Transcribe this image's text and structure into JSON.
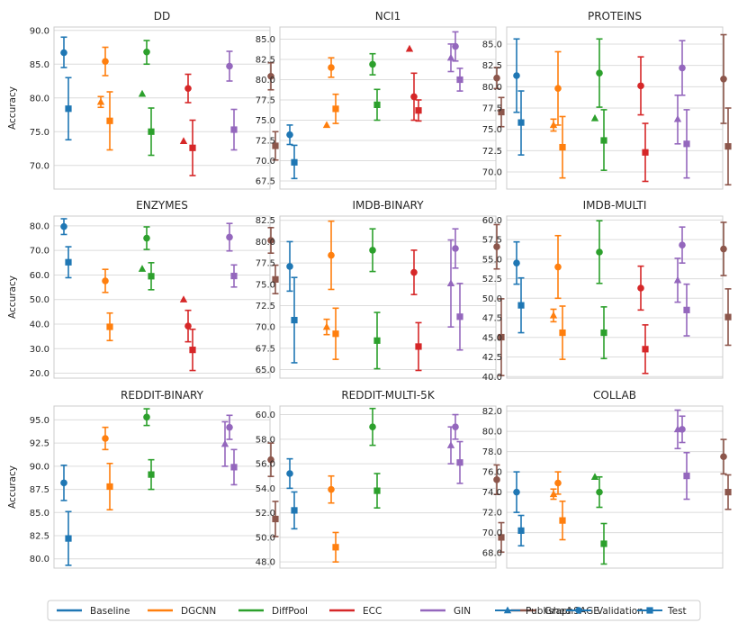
{
  "colors": {
    "Baseline": "#1f77b4",
    "DGCNN": "#ff7f0e",
    "DiffPool": "#2ca02c",
    "ECC": "#d62728",
    "GIN": "#9467bd",
    "GraphSAGE": "#8c564b"
  },
  "legend": {
    "models": [
      "Baseline",
      "DGCNN",
      "DiffPool",
      "ECC",
      "GIN",
      "GraphSAGE"
    ],
    "markers": [
      {
        "label": "Published",
        "shape": "triangle"
      },
      {
        "label": "Validation",
        "shape": "circle"
      },
      {
        "label": "Test",
        "shape": "square"
      }
    ]
  },
  "chart_data": [
    {
      "type": "scatter",
      "title": "DD",
      "ylabel": "Accuracy",
      "ylim": [
        66.5,
        90.5
      ],
      "yticks": [
        70.0,
        75.0,
        80.0,
        85.0,
        90.0
      ],
      "tick_format": "1",
      "models": [
        {
          "name": "Baseline",
          "published": null,
          "validation": [
            86.7,
            84.5,
            89.0
          ],
          "test": [
            78.4,
            73.8,
            83.0
          ]
        },
        {
          "name": "DGCNN",
          "published": [
            79.4,
            78.6,
            80.2
          ],
          "validation": [
            85.4,
            83.3,
            87.5
          ],
          "test": [
            76.6,
            72.3,
            80.9
          ]
        },
        {
          "name": "DiffPool",
          "published": [
            80.6,
            null,
            null
          ],
          "validation": [
            86.8,
            85.0,
            88.5
          ],
          "test": [
            75.0,
            71.5,
            78.5
          ]
        },
        {
          "name": "ECC",
          "published": [
            73.6,
            null,
            null
          ],
          "validation": [
            81.4,
            79.3,
            83.5
          ],
          "test": [
            72.6,
            68.5,
            76.7
          ]
        },
        {
          "name": "GIN",
          "published": null,
          "validation": [
            84.7,
            82.5,
            86.9
          ],
          "test": [
            75.3,
            72.3,
            78.3
          ]
        },
        {
          "name": "GraphSAGE",
          "published": null,
          "validation": [
            83.2,
            81.2,
            85.2
          ],
          "test": [
            72.9,
            70.8,
            75.0
          ]
        }
      ]
    },
    {
      "type": "scatter",
      "title": "NCI1",
      "ylabel": "",
      "ylim": [
        66.5,
        86.5
      ],
      "yticks": [
        67.5,
        70.0,
        72.5,
        75.0,
        77.5,
        80.0,
        82.5,
        85.0
      ],
      "tick_format": "1",
      "models": [
        {
          "name": "Baseline",
          "published": null,
          "validation": [
            73.2,
            72.0,
            74.4
          ],
          "test": [
            69.8,
            67.8,
            71.9
          ]
        },
        {
          "name": "DGCNN",
          "published": [
            74.4,
            null,
            null
          ],
          "validation": [
            81.5,
            80.3,
            82.7
          ],
          "test": [
            76.4,
            74.6,
            78.2
          ]
        },
        {
          "name": "DiffPool",
          "published": null,
          "validation": [
            81.9,
            80.6,
            83.2
          ],
          "test": [
            76.9,
            75.0,
            78.8
          ]
        },
        {
          "name": "ECC",
          "published": [
            83.8,
            null,
            null
          ],
          "validation": [
            77.9,
            75.0,
            80.8
          ],
          "test": [
            76.2,
            74.9,
            77.5
          ]
        },
        {
          "name": "GIN",
          "published": [
            82.7,
            81.0,
            84.4
          ],
          "validation": [
            84.1,
            82.3,
            85.9
          ],
          "test": [
            80.0,
            78.6,
            81.4
          ]
        },
        {
          "name": "GraphSAGE",
          "published": null,
          "validation": [
            80.2,
            78.9,
            81.5
          ],
          "test": [
            76.0,
            74.2,
            77.8
          ]
        }
      ]
    },
    {
      "type": "scatter",
      "title": "PROTEINS",
      "ylabel": "",
      "ylim": [
        68.0,
        87.0
      ],
      "yticks": [
        70.0,
        72.5,
        75.0,
        77.5,
        80.0,
        82.5,
        85.0
      ],
      "tick_format": "1",
      "models": [
        {
          "name": "Baseline",
          "published": null,
          "validation": [
            81.3,
            77.0,
            85.6
          ],
          "test": [
            75.8,
            72.0,
            79.5
          ]
        },
        {
          "name": "DGCNN",
          "published": [
            75.5,
            74.8,
            76.2
          ],
          "validation": [
            79.8,
            75.5,
            84.1
          ],
          "test": [
            72.9,
            69.3,
            76.5
          ]
        },
        {
          "name": "DiffPool",
          "published": [
            76.3,
            null,
            null
          ],
          "validation": [
            81.6,
            77.6,
            85.6
          ],
          "test": [
            73.7,
            70.2,
            77.3
          ]
        },
        {
          "name": "ECC",
          "published": null,
          "validation": [
            80.1,
            76.7,
            83.5
          ],
          "test": [
            72.3,
            68.9,
            75.7
          ]
        },
        {
          "name": "GIN",
          "published": [
            76.2,
            73.3,
            79.0
          ],
          "validation": [
            82.2,
            79.0,
            85.4
          ],
          "test": [
            73.3,
            69.3,
            77.3
          ]
        },
        {
          "name": "GraphSAGE",
          "published": null,
          "validation": [
            80.9,
            75.7,
            86.1
          ],
          "test": [
            73.0,
            68.5,
            77.5
          ]
        }
      ]
    },
    {
      "type": "scatter",
      "title": "ENZYMES",
      "ylabel": "Accuracy",
      "ylim": [
        18.0,
        84.0
      ],
      "yticks": [
        20.0,
        30.0,
        40.0,
        50.0,
        60.0,
        70.0,
        80.0
      ],
      "tick_format": "1",
      "models": [
        {
          "name": "Baseline",
          "published": null,
          "validation": [
            79.7,
            76.5,
            82.9
          ],
          "test": [
            65.2,
            58.9,
            71.5
          ]
        },
        {
          "name": "DGCNN",
          "published": null,
          "validation": [
            57.6,
            52.9,
            62.3
          ],
          "test": [
            38.9,
            33.3,
            44.5
          ]
        },
        {
          "name": "DiffPool",
          "published": [
            62.5,
            null,
            null
          ],
          "validation": [
            75.0,
            70.4,
            79.6
          ],
          "test": [
            59.5,
            54.0,
            65.0
          ]
        },
        {
          "name": "ECC",
          "published": [
            50.0,
            null,
            null
          ],
          "validation": [
            39.2,
            32.8,
            45.6
          ],
          "test": [
            29.5,
            21.1,
            37.9
          ]
        },
        {
          "name": "GIN",
          "published": null,
          "validation": [
            75.4,
            69.8,
            81.0
          ],
          "test": [
            59.6,
            55.1,
            64.1
          ]
        },
        {
          "name": "GraphSAGE",
          "published": null,
          "validation": [
            74.1,
            68.9,
            79.3
          ],
          "test": [
            58.2,
            52.4,
            64.0
          ]
        }
      ]
    },
    {
      "type": "scatter",
      "title": "IMDB-BINARY",
      "ylabel": "",
      "ylim": [
        64.0,
        83.0
      ],
      "yticks": [
        65.0,
        67.5,
        70.0,
        72.5,
        75.0,
        77.5,
        80.0,
        82.5
      ],
      "tick_format": "1",
      "models": [
        {
          "name": "Baseline",
          "published": null,
          "validation": [
            77.1,
            74.2,
            80.0
          ],
          "test": [
            70.8,
            65.8,
            75.8
          ]
        },
        {
          "name": "DGCNN",
          "published": [
            70.0,
            69.1,
            70.9
          ],
          "validation": [
            78.4,
            74.4,
            82.4
          ],
          "test": [
            69.2,
            66.2,
            72.2
          ]
        },
        {
          "name": "DiffPool",
          "published": null,
          "validation": [
            79.0,
            76.5,
            81.5
          ],
          "test": [
            68.4,
            65.1,
            71.7
          ]
        },
        {
          "name": "ECC",
          "published": null,
          "validation": [
            76.4,
            73.8,
            79.0
          ],
          "test": [
            67.7,
            64.9,
            70.5
          ]
        },
        {
          "name": "GIN",
          "published": [
            75.1,
            70.0,
            80.2
          ],
          "validation": [
            79.2,
            76.9,
            81.5
          ],
          "test": [
            71.2,
            67.3,
            75.1
          ]
        },
        {
          "name": "GraphSAGE",
          "published": null,
          "validation": [
            79.4,
            76.8,
            82.0
          ],
          "test": [
            68.8,
            64.3,
            73.3
          ]
        }
      ]
    },
    {
      "type": "scatter",
      "title": "IMDB-MULTI",
      "ylabel": "",
      "ylim": [
        39.8,
        60.5
      ],
      "yticks": [
        40.0,
        42.5,
        45.0,
        47.5,
        50.0,
        52.5,
        55.0,
        57.5,
        60.0
      ],
      "tick_format": "1",
      "models": [
        {
          "name": "Baseline",
          "published": null,
          "validation": [
            54.5,
            51.8,
            57.2
          ],
          "test": [
            49.1,
            45.6,
            52.6
          ]
        },
        {
          "name": "DGCNN",
          "published": [
            47.8,
            47.0,
            48.6
          ],
          "validation": [
            54.0,
            50.0,
            58.0
          ],
          "test": [
            45.6,
            42.2,
            49.0
          ]
        },
        {
          "name": "DiffPool",
          "published": null,
          "validation": [
            55.9,
            51.9,
            59.9
          ],
          "test": [
            45.6,
            42.3,
            48.9
          ]
        },
        {
          "name": "ECC",
          "published": null,
          "validation": [
            51.3,
            48.5,
            54.1
          ],
          "test": [
            43.5,
            40.4,
            46.6
          ]
        },
        {
          "name": "GIN",
          "published": [
            52.3,
            49.5,
            55.1
          ],
          "validation": [
            56.8,
            54.5,
            59.1
          ],
          "test": [
            48.5,
            45.2,
            51.8
          ]
        },
        {
          "name": "GraphSAGE",
          "published": null,
          "validation": [
            56.3,
            52.9,
            59.7
          ],
          "test": [
            47.6,
            44.0,
            51.2
          ]
        }
      ]
    },
    {
      "type": "scatter",
      "title": "REDDIT-BINARY",
      "ylabel": "Accuracy",
      "ylim": [
        79.0,
        96.5
      ],
      "yticks": [
        80.0,
        82.5,
        85.0,
        87.5,
        90.0,
        92.5,
        95.0
      ],
      "tick_format": "1",
      "models": [
        {
          "name": "Baseline",
          "published": null,
          "validation": [
            88.2,
            86.3,
            90.1
          ],
          "test": [
            82.2,
            79.3,
            85.1
          ]
        },
        {
          "name": "DGCNN",
          "published": null,
          "validation": [
            93.0,
            91.8,
            94.2
          ],
          "test": [
            87.8,
            85.3,
            90.3
          ]
        },
        {
          "name": "DiffPool",
          "published": null,
          "validation": [
            95.3,
            94.4,
            96.2
          ],
          "test": [
            89.1,
            87.5,
            90.7
          ]
        },
        {
          "name": "ECC",
          "published": null,
          "validation": null,
          "test": null
        },
        {
          "name": "GIN",
          "published": [
            92.4,
            90.0,
            94.8
          ],
          "validation": [
            94.2,
            92.9,
            95.5
          ],
          "test": [
            89.9,
            88.0,
            91.8
          ]
        },
        {
          "name": "GraphSAGE",
          "published": null,
          "validation": [
            90.7,
            88.9,
            92.5
          ],
          "test": [
            84.3,
            82.4,
            86.2
          ]
        }
      ]
    },
    {
      "type": "scatter",
      "title": "REDDIT-MULTI-5K",
      "ylabel": "",
      "ylim": [
        47.5,
        60.7
      ],
      "yticks": [
        48.0,
        50.0,
        52.0,
        54.0,
        56.0,
        58.0,
        60.0
      ],
      "tick_format": "1",
      "models": [
        {
          "name": "Baseline",
          "published": null,
          "validation": [
            55.2,
            54.0,
            56.4
          ],
          "test": [
            52.2,
            50.7,
            53.7
          ]
        },
        {
          "name": "DGCNN",
          "published": null,
          "validation": [
            53.9,
            52.8,
            55.0
          ],
          "test": [
            49.2,
            48.0,
            50.4
          ]
        },
        {
          "name": "DiffPool",
          "published": null,
          "validation": [
            59.0,
            57.5,
            60.5
          ],
          "test": [
            53.8,
            52.4,
            55.2
          ]
        },
        {
          "name": "ECC",
          "published": null,
          "validation": null,
          "test": null
        },
        {
          "name": "GIN",
          "published": [
            57.5,
            56.0,
            59.0
          ],
          "validation": [
            59.0,
            58.0,
            60.0
          ],
          "test": [
            56.1,
            54.4,
            57.8
          ]
        },
        {
          "name": "GraphSAGE",
          "published": null,
          "validation": [
            54.7,
            53.5,
            55.9
          ],
          "test": [
            50.0,
            48.8,
            51.2
          ]
        }
      ]
    },
    {
      "type": "scatter",
      "title": "COLLAB",
      "ylabel": "",
      "ylim": [
        66.5,
        82.5
      ],
      "yticks": [
        68.0,
        70.0,
        72.0,
        74.0,
        76.0,
        78.0,
        80.0,
        82.0
      ],
      "tick_format": "1",
      "models": [
        {
          "name": "Baseline",
          "published": null,
          "validation": [
            74.0,
            72.0,
            76.0
          ],
          "test": [
            70.2,
            68.7,
            71.7
          ]
        },
        {
          "name": "DGCNN",
          "published": [
            73.8,
            73.3,
            74.3
          ],
          "validation": [
            74.9,
            73.8,
            76.0
          ],
          "test": [
            71.2,
            69.3,
            73.1
          ]
        },
        {
          "name": "DiffPool",
          "published": [
            75.5,
            null,
            null
          ],
          "validation": [
            74.0,
            72.5,
            75.5
          ],
          "test": [
            68.9,
            66.9,
            70.9
          ]
        },
        {
          "name": "ECC",
          "published": null,
          "validation": null,
          "test": null
        },
        {
          "name": "GIN",
          "published": [
            80.2,
            78.3,
            82.1
          ],
          "validation": [
            80.2,
            78.9,
            81.5
          ],
          "test": [
            75.6,
            73.3,
            77.9
          ]
        },
        {
          "name": "GraphSAGE",
          "published": null,
          "validation": [
            77.5,
            75.8,
            79.2
          ],
          "test": [
            74.0,
            72.3,
            75.7
          ]
        }
      ]
    }
  ]
}
